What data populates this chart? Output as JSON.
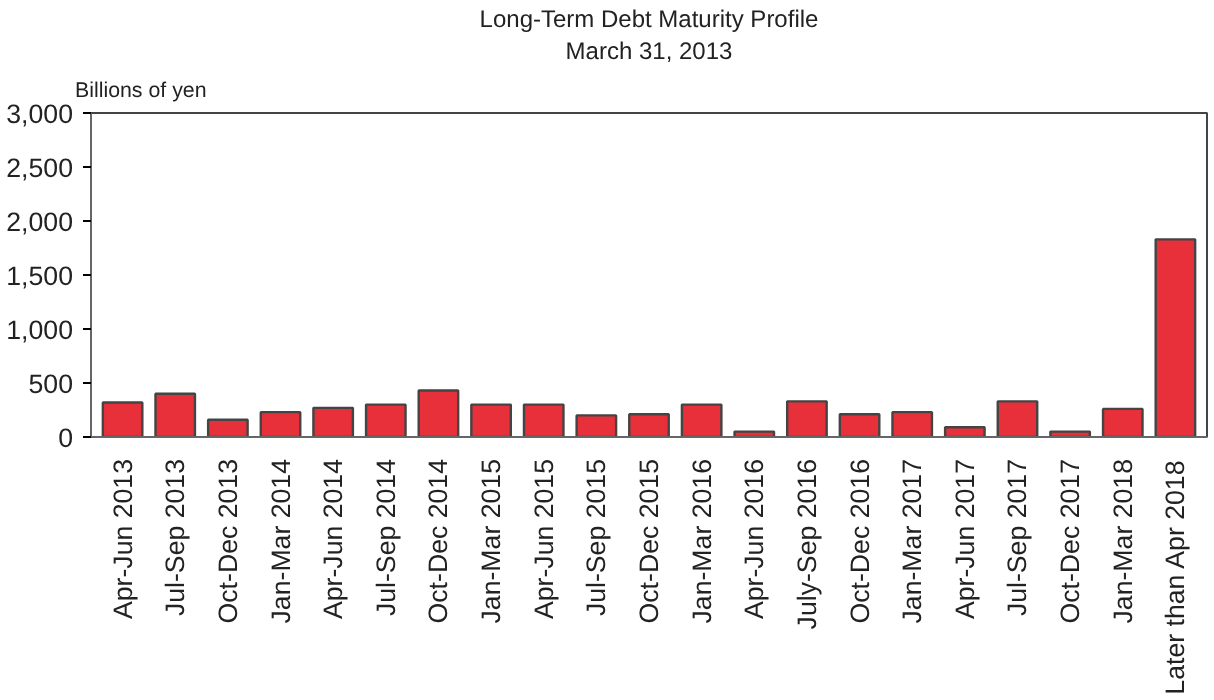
{
  "chart_data": {
    "type": "bar",
    "title": "Long-Term Debt Maturity Profile",
    "subtitle": "March 31, 2013",
    "ylabel": "Billions of yen",
    "categories": [
      "Apr-Jun 2013",
      "Jul-Sep 2013",
      "Oct-Dec 2013",
      "Jan-Mar 2014",
      "Apr-Jun 2014",
      "Jul-Sep 2014",
      "Oct-Dec 2014",
      "Jan-Mar 2015",
      "Apr-Jun 2015",
      "Jul-Sep 2015",
      "Oct-Dec 2015",
      "Jan-Mar 2016",
      "Apr-Jun 2016",
      "July-Sep 2016",
      "Oct-Dec 2016",
      "Jan-Mar 2017",
      "Apr-Jun 2017",
      "Jul-Sep 2017",
      "Oct-Dec 2017",
      "Jan-Mar 2018",
      "Later than Apr 2018"
    ],
    "values": [
      320,
      400,
      160,
      230,
      270,
      300,
      430,
      300,
      300,
      200,
      210,
      300,
      50,
      330,
      210,
      230,
      90,
      330,
      50,
      260,
      1830
    ],
    "color": "#e8303a",
    "ylim": [
      0,
      3000
    ],
    "yticks": [
      {
        "value": 0,
        "label": "0"
      },
      {
        "value": 500,
        "label": "500"
      },
      {
        "value": 1000,
        "label": "1,000"
      },
      {
        "value": 1500,
        "label": "1,500"
      },
      {
        "value": 2000,
        "label": "2,000"
      },
      {
        "value": 2500,
        "label": "2,500"
      },
      {
        "value": 3000,
        "label": "3,000"
      }
    ],
    "grid": false
  }
}
